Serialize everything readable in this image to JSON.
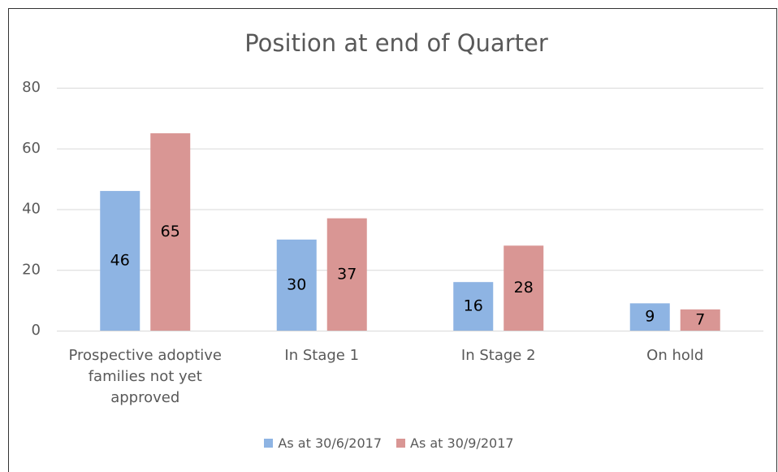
{
  "chart_data": {
    "type": "bar",
    "title": "Position at end of Quarter",
    "categories": [
      "Prospective adoptive families not yet approved",
      "In Stage 1",
      "In Stage 2",
      "On hold"
    ],
    "series": [
      {
        "name": "As at 30/6/2017",
        "color": "#8eb4e3",
        "values": [
          46,
          30,
          16,
          9
        ]
      },
      {
        "name": "As at 30/9/2017",
        "color": "#d99694",
        "values": [
          65,
          37,
          28,
          7
        ]
      }
    ],
    "ylim": [
      0,
      80
    ],
    "yticks": [
      0,
      20,
      40,
      60,
      80
    ],
    "grid": true,
    "legend": "bottom"
  }
}
